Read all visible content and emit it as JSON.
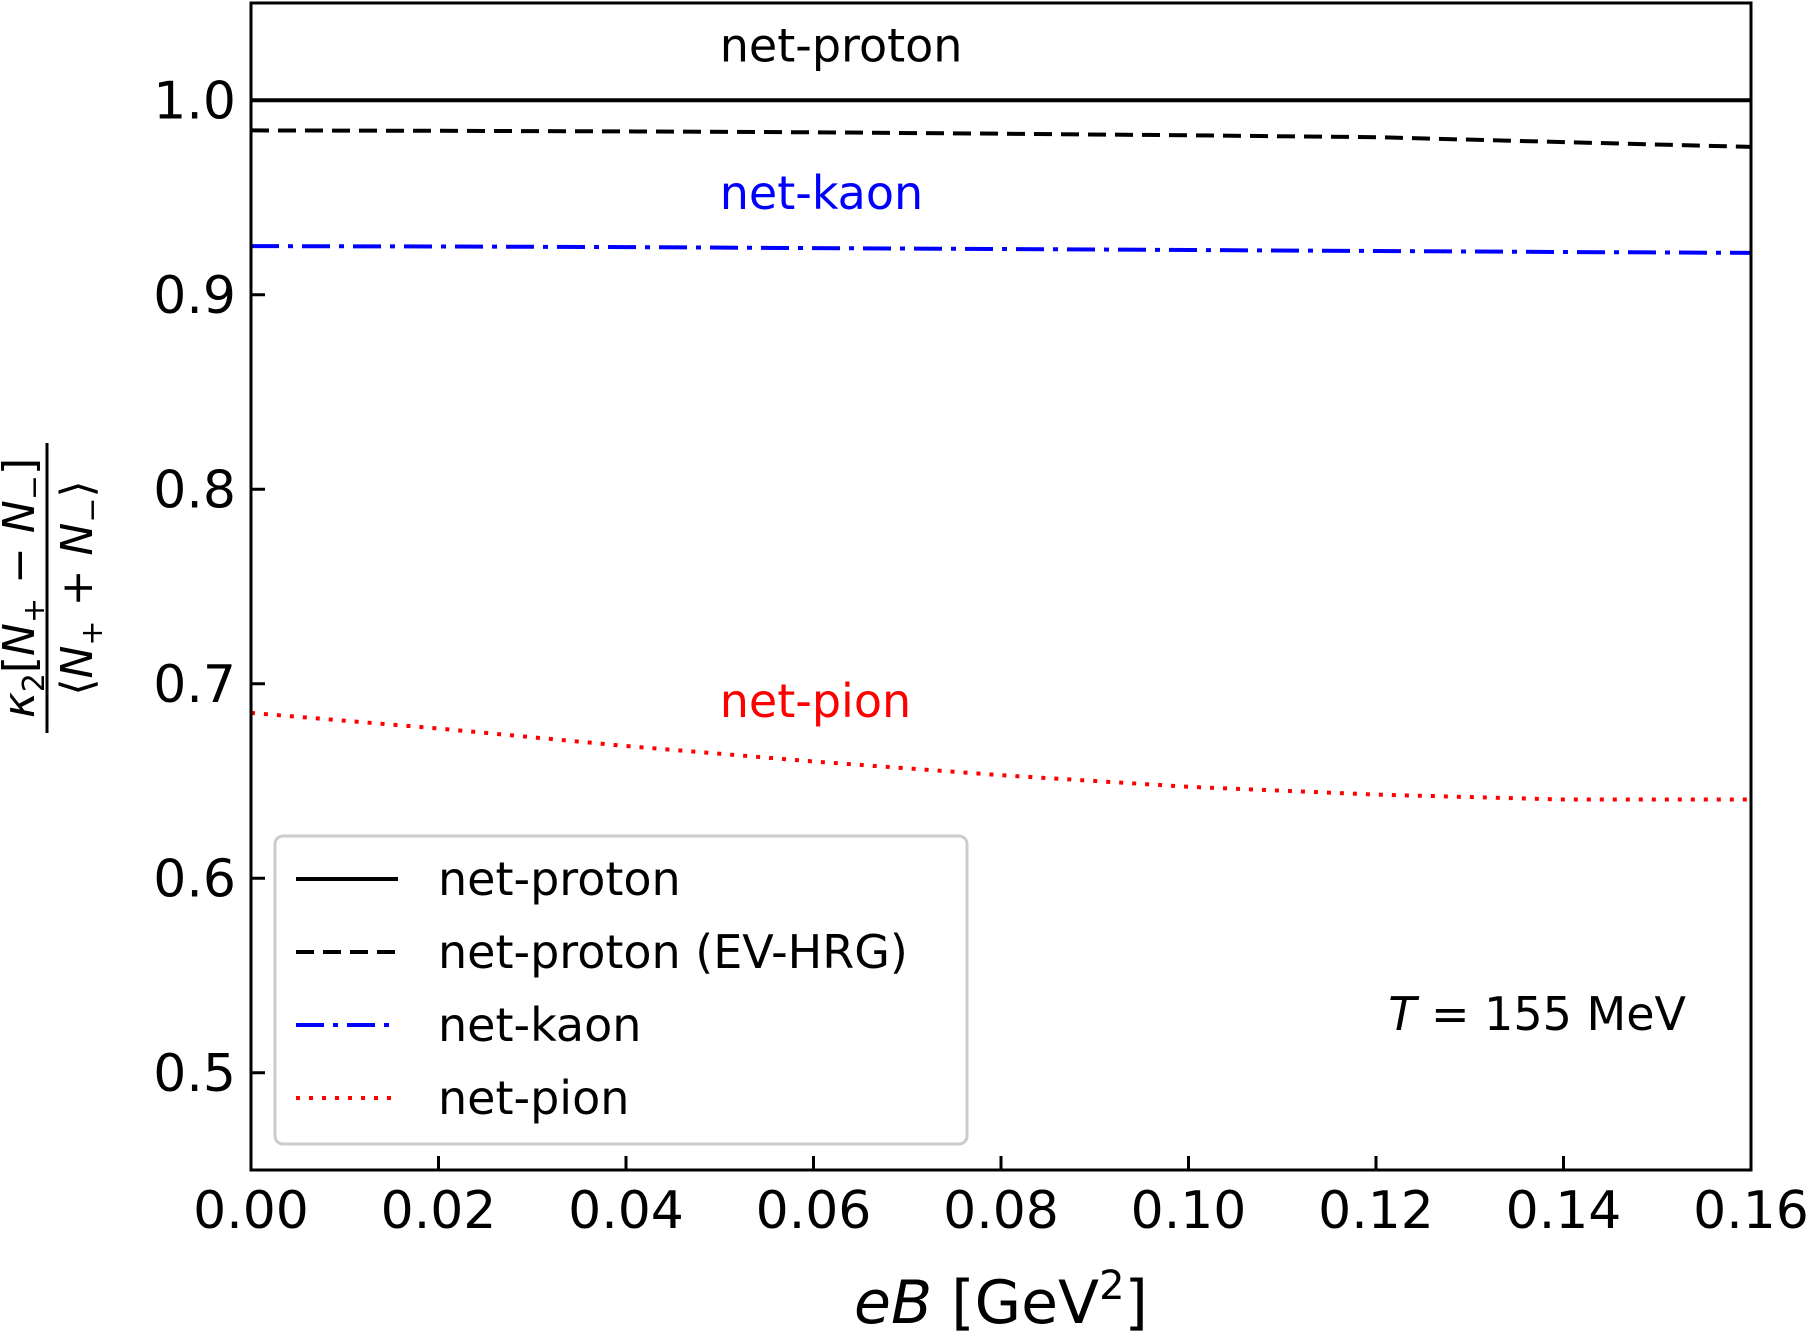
{
  "chart_data": {
    "type": "line",
    "title": "",
    "xlabel": {
      "var": "eB",
      "unit_base": "GeV",
      "unit_exp": "2"
    },
    "ylabel": {
      "prefix": "κ",
      "sub": "2",
      "numerator": "[N+ − N−]",
      "denominator": "⟨N+ + N−⟩"
    },
    "xlim": [
      0.0,
      0.16
    ],
    "ylim": [
      0.45,
      1.05
    ],
    "xticks": [
      0.0,
      0.02,
      0.04,
      0.06,
      0.08,
      0.1,
      0.12,
      0.14,
      0.16
    ],
    "xtick_labels": [
      "0.00",
      "0.02",
      "0.04",
      "0.06",
      "0.08",
      "0.10",
      "0.12",
      "0.14",
      "0.16"
    ],
    "yticks": [
      0.5,
      0.6,
      0.7,
      0.8,
      0.9,
      1.0
    ],
    "ytick_labels": [
      "0.5",
      "0.6",
      "0.7",
      "0.8",
      "0.9",
      "1.0"
    ],
    "grid": false,
    "legend_position": "bottom-left",
    "annotation": "T = 155 MeV",
    "series": [
      {
        "name": "net-proton",
        "color": "#000000",
        "style": "solid",
        "x": [
          0.0,
          0.02,
          0.04,
          0.06,
          0.08,
          0.1,
          0.12,
          0.14,
          0.16
        ],
        "y": [
          1.0,
          1.0,
          1.0,
          1.0,
          1.0,
          1.0,
          1.0,
          1.0,
          1.0
        ]
      },
      {
        "name": "net-proton (EV-HRG)",
        "color": "#000000",
        "style": "dashed",
        "x": [
          0.0,
          0.02,
          0.04,
          0.06,
          0.08,
          0.1,
          0.12,
          0.14,
          0.16
        ],
        "y": [
          0.9845,
          0.9843,
          0.984,
          0.9835,
          0.9828,
          0.982,
          0.981,
          0.9785,
          0.976
        ]
      },
      {
        "name": "net-kaon",
        "color": "#0000ff",
        "style": "dashdot",
        "x": [
          0.0,
          0.02,
          0.04,
          0.06,
          0.08,
          0.1,
          0.12,
          0.14,
          0.16
        ],
        "y": [
          0.925,
          0.9248,
          0.9245,
          0.924,
          0.9235,
          0.923,
          0.9225,
          0.922,
          0.9215
        ]
      },
      {
        "name": "net-pion",
        "color": "#ff0000",
        "style": "dotted",
        "x": [
          0.0,
          0.02,
          0.04,
          0.06,
          0.08,
          0.1,
          0.12,
          0.14,
          0.16
        ],
        "y": [
          0.685,
          0.677,
          0.668,
          0.66,
          0.653,
          0.647,
          0.643,
          0.6405,
          0.6405
        ]
      }
    ],
    "curve_labels": [
      {
        "text": "net-proton",
        "color": "#000000",
        "x": 0.05,
        "y": 1.02
      },
      {
        "text": "net-kaon",
        "color": "#0000ff",
        "x": 0.05,
        "y": 0.944
      },
      {
        "text": "net-pion",
        "color": "#ff0000",
        "x": 0.05,
        "y": 0.683
      }
    ]
  }
}
